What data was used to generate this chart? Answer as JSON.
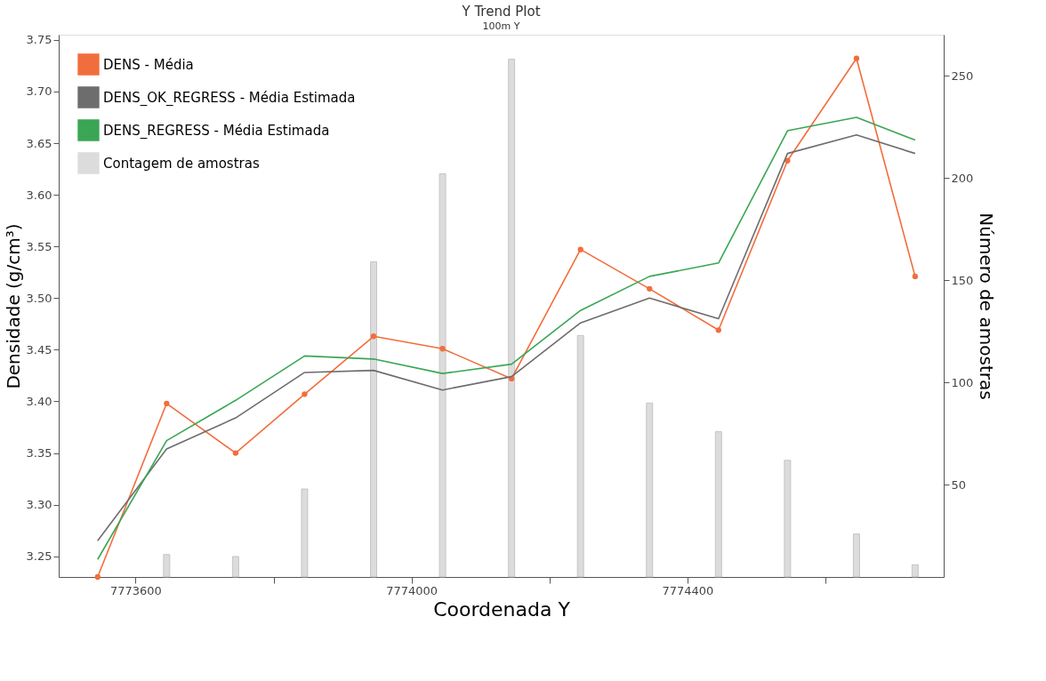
{
  "chart_data": {
    "type": "line",
    "title": "Y Trend Plot",
    "subtitle": "100m Y",
    "xlabel": "Coordenada Y",
    "ylabel": "Densidade (g/cm³)",
    "y2label": "Número de amostras",
    "x": [
      7773545,
      7773645,
      7773745,
      7773845,
      7773945,
      7774045,
      7774145,
      7774245,
      7774345,
      7774445,
      7774545,
      7774645,
      7774730
    ],
    "xlim": [
      7773495,
      7774765
    ],
    "xticks": [
      7773600,
      {
        "value": 7773800,
        "label": null
      },
      7774000,
      {
        "value": 7774200,
        "label": null
      },
      7774400,
      {
        "value": 7774600,
        "label": null
      }
    ],
    "ylim": [
      3.23,
      3.755
    ],
    "yticks": [
      3.25,
      {
        "value": 3.3,
        "label": "3.30"
      },
      3.35,
      {
        "value": 3.4,
        "label": "3.40"
      },
      3.45,
      {
        "value": 3.5,
        "label": "3.50"
      },
      3.55,
      {
        "value": 3.6,
        "label": "3.60"
      },
      3.65,
      {
        "value": 3.7,
        "label": "3.70"
      },
      3.75
    ],
    "y2lim": [
      5,
      270
    ],
    "y2ticks": [
      50,
      100,
      150,
      200,
      250
    ],
    "grid": false,
    "legend": "top left",
    "line_style": "solid",
    "series": [
      {
        "name": "DENS - Média",
        "marker": "circle",
        "color": "#f26d3d",
        "values": [
          3.23,
          3.398,
          3.35,
          3.407,
          3.463,
          3.451,
          3.422,
          3.547,
          3.509,
          3.469,
          3.633,
          3.732,
          3.521
        ]
      },
      {
        "name": "DENS_OK_REGRESS - Média Estimada",
        "color": "#6d6d6d",
        "values": [
          3.265,
          3.354,
          3.384,
          3.428,
          3.43,
          3.411,
          3.424,
          3.476,
          3.5,
          3.48,
          3.64,
          3.658,
          3.64
        ]
      },
      {
        "name": "DENS_REGRESS - Média Estimada",
        "color": "#3aa655",
        "values": [
          3.247,
          3.362,
          3.401,
          3.444,
          3.441,
          3.427,
          3.436,
          3.488,
          3.521,
          3.534,
          3.662,
          3.675,
          3.653
        ]
      },
      {
        "name": "Contagem de amostras",
        "type": "bar",
        "axis": "y2",
        "color": "#dcdcdc",
        "values": [
          null,
          16,
          15,
          48,
          159,
          202,
          258,
          123,
          90,
          76,
          62,
          26,
          11
        ]
      }
    ]
  }
}
